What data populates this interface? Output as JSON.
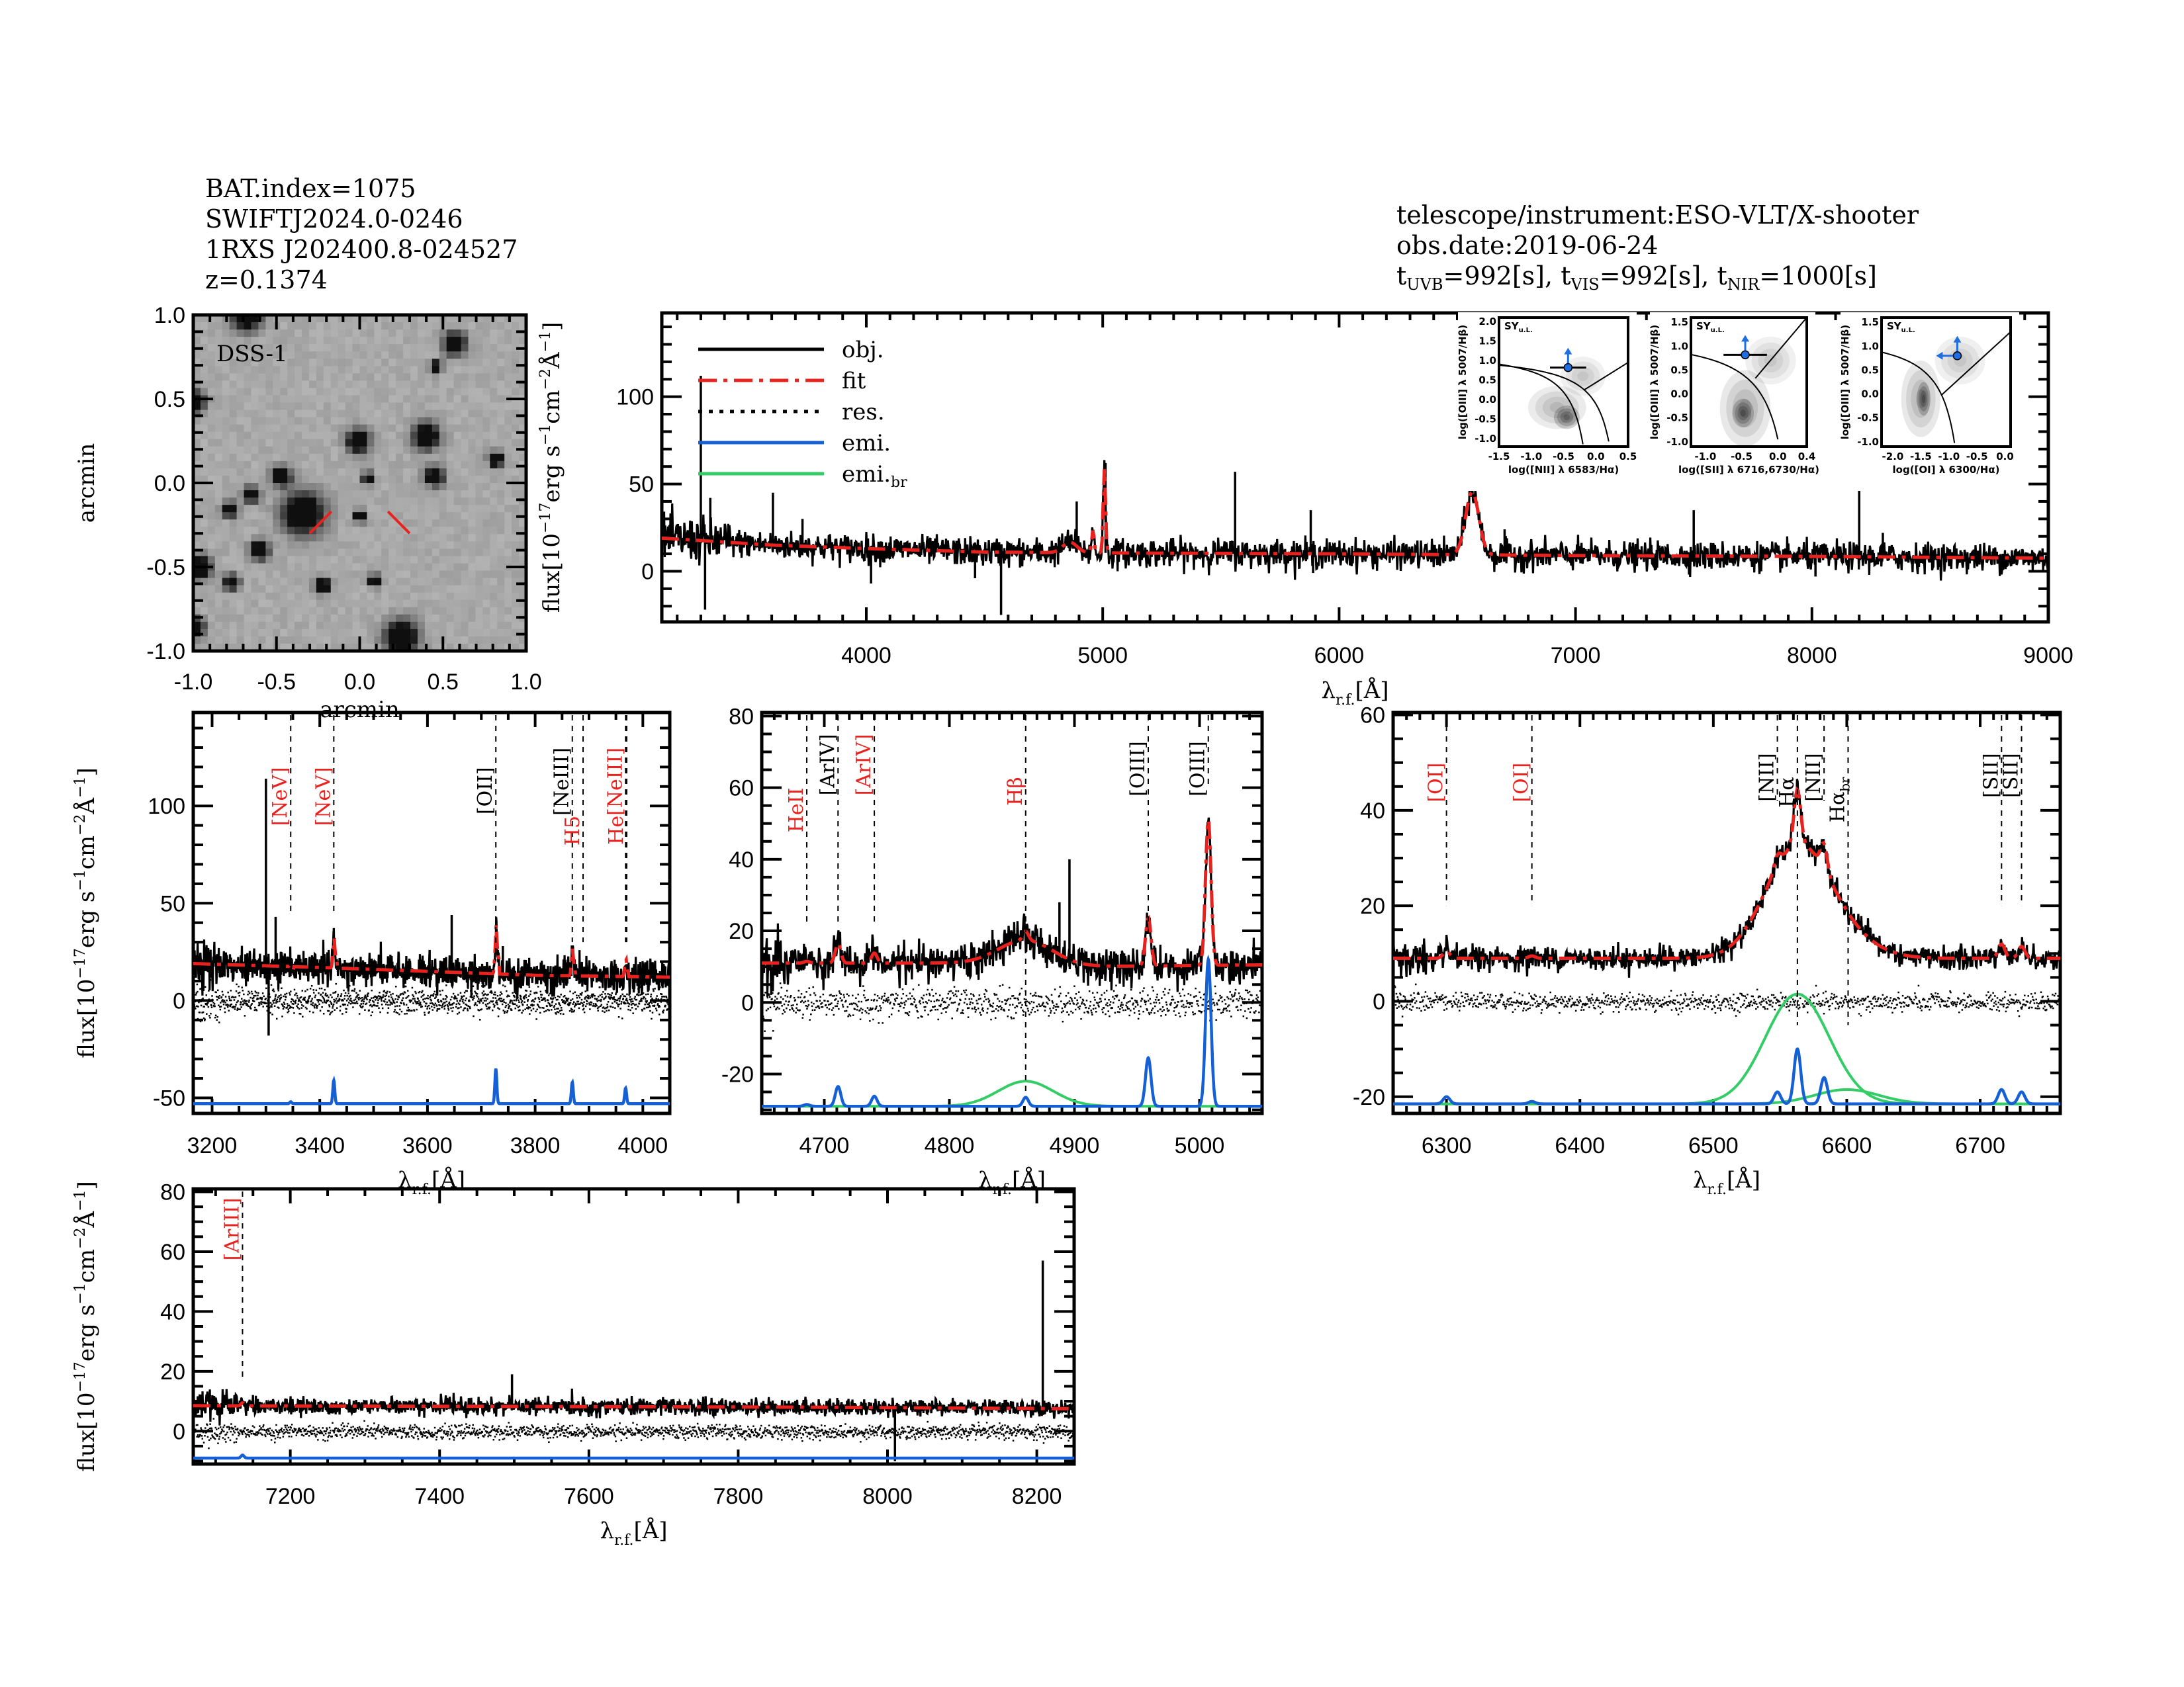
{
  "header_left": {
    "bat_index": "BAT.index=1075",
    "swift_name": "SWIFTJ2024.0-0246",
    "counterpart": "1RXS J202400.8-024527",
    "redshift": "z=0.1374"
  },
  "header_right": {
    "instrument": "telescope/instrument:ESO-VLT/X-shooter",
    "obs_date": "obs.date:2019-06-24",
    "exposure": {
      "uvb_label": "t",
      "uvb_sub": "UVB",
      "uvb_value": "=992[s],",
      "vis_label": "t",
      "vis_sub": "VIS",
      "vis_value": "=992[s],",
      "nir_label": "t",
      "nir_sub": "NIR",
      "nir_value": "=1000[s]"
    }
  },
  "colors": {
    "obj": "#000000",
    "fit": "#e8231f",
    "res": "#000000",
    "emi": "#1560d4",
    "emi_br": "#33cc66",
    "label_red": "#e8231f",
    "bpt_blue": "#1f6fe0"
  },
  "chart_data": [
    {
      "id": "dss_image",
      "type": "heatmap",
      "title": "DSS-1",
      "xlabel": "arcmin",
      "ylabel": "arcmin",
      "xlim": [
        -1.0,
        1.0
      ],
      "ylim": [
        -1.0,
        1.0
      ],
      "xticks": [
        "-1.0",
        "-0.5",
        "0.0",
        "0.5",
        "1.0"
      ],
      "yticks": [
        "-1.0",
        "-0.5",
        "0.0",
        "0.5",
        "1.0"
      ],
      "sources": [
        {
          "x": -0.68,
          "y": 1.0,
          "r": 0.08
        },
        {
          "x": 0.57,
          "y": 0.83,
          "r": 0.06
        },
        {
          "x": 0.46,
          "y": 0.69,
          "r": 0.03
        },
        {
          "x": -1.0,
          "y": 0.48,
          "r": 0.06
        },
        {
          "x": -0.01,
          "y": 0.25,
          "r": 0.06
        },
        {
          "x": 0.4,
          "y": 0.28,
          "r": 0.07
        },
        {
          "x": 0.82,
          "y": 0.14,
          "r": 0.04
        },
        {
          "x": -0.47,
          "y": 0.04,
          "r": 0.05
        },
        {
          "x": 0.05,
          "y": 0.03,
          "r": 0.03
        },
        {
          "x": 0.45,
          "y": 0.04,
          "r": 0.05
        },
        {
          "x": -0.65,
          "y": -0.07,
          "r": 0.04
        },
        {
          "x": -0.34,
          "y": -0.18,
          "r": 0.11
        },
        {
          "x": -0.78,
          "y": -0.16,
          "r": 0.04
        },
        {
          "x": 0.0,
          "y": -0.2,
          "r": 0.03
        },
        {
          "x": -0.6,
          "y": -0.4,
          "r": 0.05
        },
        {
          "x": -0.96,
          "y": -0.5,
          "r": 0.06
        },
        {
          "x": -0.77,
          "y": -0.59,
          "r": 0.04
        },
        {
          "x": -0.22,
          "y": -0.61,
          "r": 0.04
        },
        {
          "x": 0.09,
          "y": -0.58,
          "r": 0.03
        },
        {
          "x": -0.99,
          "y": -0.86,
          "r": 0.05
        },
        {
          "x": 0.25,
          "y": -0.92,
          "r": 0.09
        }
      ],
      "marker_segments": [
        {
          "x1": -0.3,
          "y1": -0.3,
          "x2": -0.17,
          "y2": -0.17
        },
        {
          "x1": 0.17,
          "y1": -0.17,
          "x2": 0.3,
          "y2": -0.3
        }
      ]
    },
    {
      "id": "full_spectrum",
      "type": "line",
      "xlabel": "λr.f.[Å]",
      "ylabel": "flux[10^-17 erg s^-1 cm^-2 Å^-1]",
      "xlim": [
        3135,
        9000
      ],
      "ylim": [
        -29,
        148
      ],
      "xticks": [
        4000,
        5000,
        6000,
        7000,
        8000,
        9000
      ],
      "yticks": [
        0,
        50,
        100
      ],
      "legend": {
        "placement": "top-left",
        "entries": [
          {
            "label": "obj.",
            "style": "solid",
            "color_key": "obj"
          },
          {
            "label": "fit",
            "style": "dash-dot",
            "color_key": "fit"
          },
          {
            "label": "res.",
            "style": "dotted",
            "color_key": "res"
          },
          {
            "label": "emi.",
            "style": "solid",
            "color_key": "emi"
          },
          {
            "label": "emi.",
            "label_sub": "br",
            "style": "solid",
            "color_key": "emi_br"
          }
        ]
      },
      "continuum": [
        [
          3135,
          19
        ],
        [
          3600,
          15
        ],
        [
          4000,
          13
        ],
        [
          4500,
          11
        ],
        [
          5000,
          10.5
        ],
        [
          6000,
          10
        ],
        [
          7000,
          9
        ],
        [
          8000,
          8.5
        ],
        [
          9000,
          7.5
        ]
      ],
      "noise": 4,
      "lines": [
        {
          "center": 5007,
          "amp": 48,
          "sigma": 5
        },
        {
          "center": 4959,
          "amp": 13,
          "sigma": 5
        },
        {
          "center": 4861,
          "amp": 6,
          "sigma": 30
        },
        {
          "center": 6563,
          "amp": 36,
          "sigma": 28
        }
      ],
      "spikes": [
        {
          "x": 3300,
          "y": 112
        },
        {
          "x": 3318,
          "y": -22
        },
        {
          "x": 3340,
          "y": 42
        },
        {
          "x": 3605,
          "y": 45
        },
        {
          "x": 3730,
          "y": 30
        },
        {
          "x": 4020,
          "y": -7
        },
        {
          "x": 4460,
          "y": -4
        },
        {
          "x": 4570,
          "y": -25
        },
        {
          "x": 4890,
          "y": 40
        },
        {
          "x": 5012,
          "y": 62
        },
        {
          "x": 5560,
          "y": 57
        },
        {
          "x": 5880,
          "y": 35
        },
        {
          "x": 5890,
          "y": -1
        },
        {
          "x": 6700,
          "y": 24
        },
        {
          "x": 7500,
          "y": 35
        },
        {
          "x": 8015,
          "y": -3
        },
        {
          "x": 8200,
          "y": 68
        },
        {
          "x": 8300,
          "y": 22
        }
      ],
      "insets": [
        {
          "type": "scatter",
          "tag": "SY",
          "tag_sub": "u.L.",
          "xlabel": "log([NII] λ 6583/Hα)",
          "ylabel": "log([OIII] λ 5007/Hβ)",
          "xlim": [
            -1.5,
            0.5
          ],
          "ylim": [
            -1.2,
            2.1
          ],
          "xticks": [
            "-1.5",
            "-1.0",
            "-0.5",
            "0.0",
            "0.5"
          ],
          "yticks": [
            "-1.0",
            "-0.5",
            "0.0",
            "0.5",
            "1.0",
            "1.5",
            "2.0"
          ],
          "point": {
            "x": -0.43,
            "y": 0.82,
            "xerr": 0.28,
            "upper_limit": "y"
          }
        },
        {
          "type": "scatter",
          "tag": "SY",
          "tag_sub": "u.L.",
          "xlabel": "log([SII] λ 6716,6730/Hα)",
          "ylabel": "log([OIII] λ 5007/Hβ)",
          "xlim": [
            -1.2,
            0.4
          ],
          "ylim": [
            -1.1,
            1.6
          ],
          "xticks": [
            "-1.0",
            "-0.5",
            "0.0",
            "0.4"
          ],
          "yticks": [
            "-1.0",
            "-0.5",
            "0.0",
            "0.5",
            "1.0",
            "1.5"
          ],
          "point": {
            "x": -0.45,
            "y": 0.82,
            "xerr": 0.3,
            "upper_limit": "y"
          }
        },
        {
          "type": "scatter",
          "tag": "SY",
          "tag_sub": "u.L.",
          "xlabel": "log([OI] λ 6300/Hα)",
          "ylabel": "log([OIII] λ 5007/Hβ)",
          "xlim": [
            -2.2,
            0.1
          ],
          "ylim": [
            -1.1,
            1.6
          ],
          "xticks": [
            "-2.0",
            "-1.5",
            "-1.0",
            "-0.5",
            "0.0"
          ],
          "yticks": [
            "-1.0",
            "-0.5",
            "0.0",
            "0.5",
            "1.0",
            "1.5"
          ],
          "point": {
            "x": -0.85,
            "y": 0.8,
            "upper_limit": "xy"
          }
        }
      ]
    },
    {
      "id": "zoom_nev_oii",
      "type": "line",
      "xlabel": "λr.f.[Å]",
      "ylabel": "flux[10^-17 erg s^-1 cm^-2 Å^-1]",
      "xlim": [
        3165,
        4050
      ],
      "ylim": [
        -58,
        148
      ],
      "xticks": [
        3200,
        3400,
        3600,
        3800,
        4000
      ],
      "yticks": [
        -50,
        0,
        50,
        100
      ],
      "emi_baseline": -53,
      "continuum": [
        [
          3165,
          19
        ],
        [
          3400,
          17
        ],
        [
          3600,
          15
        ],
        [
          3800,
          13
        ],
        [
          4050,
          12
        ]
      ],
      "noise": 4,
      "fit_steps": [
        {
          "x": 3345,
          "dy": -1.5
        },
        {
          "x": 3426,
          "dy": 4
        },
        {
          "x": 3727,
          "dy": 8
        },
        {
          "x": 3869,
          "dy": 3
        },
        {
          "x": 3968,
          "dy": 2
        }
      ],
      "spikes": [
        {
          "x": 3300,
          "y": 114
        },
        {
          "x": 3305,
          "y": -18
        },
        {
          "x": 3318,
          "y": 43
        },
        {
          "x": 3604,
          "y": 26
        },
        {
          "x": 3645,
          "y": 44
        },
        {
          "x": 3740,
          "y": 28
        }
      ],
      "emission": [
        {
          "center": 3346,
          "amp": 1,
          "sigma": 1.8
        },
        {
          "center": 3426,
          "amp": 12,
          "sigma": 1.8
        },
        {
          "center": 3727,
          "amp": 18,
          "sigma": 1.8
        },
        {
          "center": 3869,
          "amp": 11,
          "sigma": 1.8
        },
        {
          "center": 3968,
          "amp": 8,
          "sigma": 1.8
        }
      ],
      "line_markers": [
        {
          "label": "[NeV]",
          "x": 3346,
          "color_key": "label_red",
          "label_top": 120,
          "line_bottom": 45
        },
        {
          "label": "[NeV]",
          "x": 3426,
          "color_key": "label_red",
          "label_top": 120,
          "line_bottom": 45
        },
        {
          "label": "[OII]",
          "x": 3727,
          "color_key": "obj",
          "label_top": 120,
          "line_bottom": 20
        },
        {
          "label": "[NeIII]",
          "x": 3869,
          "color_key": "obj",
          "label_top": 130,
          "line_bottom": 30
        },
        {
          "label": "H5",
          "x": 3889,
          "color_key": "label_red",
          "label_top": 95,
          "line_bottom": 30
        },
        {
          "label": "[NeIII]",
          "x": 3968,
          "color_key": "label_red",
          "label_top": 130,
          "line_bottom": 30
        },
        {
          "label": "He",
          "x": 3970,
          "color_key": "label_red",
          "label_top": 95,
          "line_bottom": 30
        }
      ]
    },
    {
      "id": "zoom_hbeta_oiii",
      "type": "line",
      "xlabel": "λr.f.[Å]",
      "ylabel": "",
      "xlim": [
        4650,
        5050
      ],
      "ylim": [
        -31,
        81
      ],
      "xticks": [
        4700,
        4800,
        4900,
        5000
      ],
      "yticks": [
        -20,
        0,
        20,
        40,
        60,
        80
      ],
      "emi_baseline": -29,
      "continuum": [
        [
          4650,
          11
        ],
        [
          4800,
          11
        ],
        [
          4900,
          10
        ],
        [
          5050,
          10.5
        ]
      ],
      "noise": 2.5,
      "broad": [
        {
          "center": 4861,
          "amp": 7,
          "sigma": 22
        }
      ],
      "emission": [
        {
          "center": 4686,
          "amp": 0.5,
          "sigma": 2.2
        },
        {
          "center": 4711,
          "amp": 5.5,
          "sigma": 2.2
        },
        {
          "center": 4740,
          "amp": 2.8,
          "sigma": 2.2
        },
        {
          "center": 4861,
          "amp": 2.5,
          "sigma": 2.2
        },
        {
          "center": 4959,
          "amp": 13.5,
          "sigma": 2.2
        },
        {
          "center": 5007,
          "amp": 41,
          "sigma": 2.2
        }
      ],
      "spikes": [
        {
          "x": 4896,
          "y": 40
        },
        {
          "x": 4888,
          "y": 28
        }
      ],
      "line_markers": [
        {
          "label": "HeII",
          "x": 4686,
          "color_key": "label_red",
          "label_top": 60,
          "line_bottom": 22
        },
        {
          "label": "[ArIV]",
          "x": 4711,
          "color_key": "obj",
          "label_top": 75,
          "line_bottom": 22
        },
        {
          "label": "[ArIV]",
          "x": 4740,
          "color_key": "label_red",
          "label_top": 75,
          "line_bottom": 22
        },
        {
          "label": "Hβ",
          "x": 4861,
          "color_key": "label_red",
          "label_top": 63,
          "line_bottom": -25
        },
        {
          "label": "[OIII]",
          "x": 4959,
          "color_key": "obj",
          "label_top": 73,
          "line_bottom": 22
        },
        {
          "label": "[OIII]",
          "x": 5007,
          "color_key": "obj",
          "label_top": 73,
          "line_bottom": 60
        }
      ]
    },
    {
      "id": "zoom_halpha",
      "type": "line",
      "xlabel": "λr.f.[Å]",
      "ylabel": "",
      "xlim": [
        6260,
        6760
      ],
      "ylim": [
        -23.5,
        60.5
      ],
      "xticks": [
        6300,
        6400,
        6500,
        6600,
        6700
      ],
      "yticks": [
        -20,
        0,
        20,
        40,
        60
      ],
      "emi_baseline": -21.5,
      "continuum": [
        [
          6260,
          9
        ],
        [
          6500,
          9
        ],
        [
          6760,
          9
        ]
      ],
      "noise": 1.2,
      "broad": [
        {
          "center": 6563,
          "amp": 23,
          "sigma": 24
        },
        {
          "center": 6600,
          "amp": 3,
          "sigma": 24
        }
      ],
      "emission": [
        {
          "center": 6300,
          "amp": 1.5,
          "sigma": 2.5
        },
        {
          "center": 6364,
          "amp": 0.5,
          "sigma": 2.5
        },
        {
          "center": 6548,
          "amp": 2.5,
          "sigma": 2.5
        },
        {
          "center": 6563,
          "amp": 11.5,
          "sigma": 2.5
        },
        {
          "center": 6583,
          "amp": 5.5,
          "sigma": 2.5
        },
        {
          "center": 6716,
          "amp": 3,
          "sigma": 2.5
        },
        {
          "center": 6731,
          "amp": 2.5,
          "sigma": 2.5
        }
      ],
      "line_markers": [
        {
          "label": "[OI]",
          "x": 6300,
          "color_key": "label_red",
          "label_top": 50,
          "line_bottom": 20
        },
        {
          "label": "[OI]",
          "x": 6364,
          "color_key": "label_red",
          "label_top": 50,
          "line_bottom": 20
        },
        {
          "label": "[NII]",
          "x": 6548,
          "color_key": "obj",
          "label_top": 52,
          "line_bottom": 42
        },
        {
          "label": "Hα",
          "x": 6563,
          "color_key": "obj",
          "label_top": 47,
          "line_bottom": -5
        },
        {
          "label": "[NII]",
          "x": 6583,
          "color_key": "obj",
          "label_top": 52,
          "line_bottom": 42
        },
        {
          "label": "Hα",
          "label_sub": "br",
          "x": 6601,
          "color_key": "obj",
          "label_top": 47,
          "line_bottom": -5
        },
        {
          "label": "[SII]",
          "x": 6716,
          "color_key": "obj",
          "label_top": 52,
          "line_bottom": 20
        },
        {
          "label": "[SII]",
          "x": 6731,
          "color_key": "obj",
          "label_top": 52,
          "line_bottom": 20
        }
      ]
    },
    {
      "id": "zoom_ariii",
      "type": "line",
      "xlabel": "λr.f.[Å]",
      "ylabel": "flux[10^-17 erg s^-1 cm^-2 Å^-1]",
      "xlim": [
        7070,
        8250
      ],
      "ylim": [
        -11,
        81
      ],
      "xticks": [
        7200,
        7400,
        7600,
        7800,
        8000,
        8200
      ],
      "yticks": [
        0,
        20,
        40,
        60,
        80
      ],
      "emi_baseline": -9,
      "continuum": [
        [
          7070,
          8.5
        ],
        [
          7600,
          8.2
        ],
        [
          7900,
          8
        ],
        [
          8250,
          7.5
        ]
      ],
      "noise": 1.4,
      "emission": [
        {
          "center": 7136,
          "amp": 1,
          "sigma": 2
        }
      ],
      "spikes": [
        {
          "x": 7497,
          "y": 19
        },
        {
          "x": 8010,
          "y": -10
        },
        {
          "x": 8208,
          "y": 57
        }
      ],
      "line_markers": [
        {
          "label": "[ArIII]",
          "x": 7136,
          "color_key": "label_red",
          "label_top": 78,
          "line_bottom": 18
        }
      ]
    }
  ]
}
